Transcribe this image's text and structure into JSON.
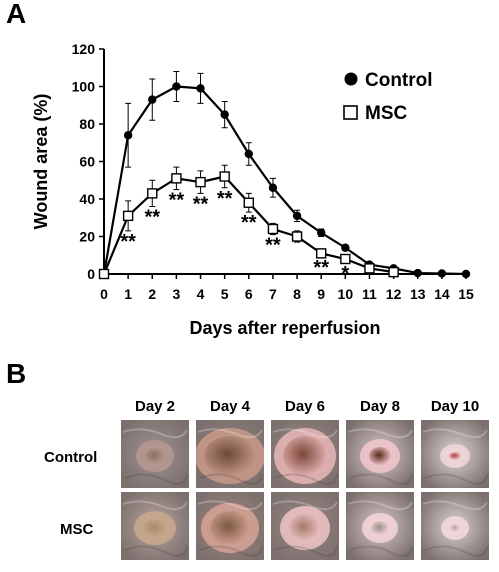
{
  "panel_a_label": "A",
  "panel_b_label": "B",
  "chart_data": {
    "type": "line",
    "title": "",
    "xlabel": "Days after reperfusion",
    "ylabel": "Wound area (%)",
    "xlim": [
      0,
      15
    ],
    "ylim": [
      0,
      120
    ],
    "x_ticks": [
      0,
      1,
      2,
      3,
      4,
      5,
      6,
      7,
      8,
      9,
      10,
      11,
      12,
      13,
      14,
      15
    ],
    "y_ticks": [
      0,
      20,
      40,
      60,
      80,
      100,
      120
    ],
    "grid": false,
    "legend_position": "top-right",
    "series": [
      {
        "name": "Control",
        "marker": "filled-circle",
        "color": "#000000",
        "x": [
          0,
          1,
          2,
          3,
          4,
          5,
          6,
          7,
          8,
          9,
          10,
          11,
          12,
          13,
          14,
          15
        ],
        "values": [
          0,
          74,
          93,
          100,
          99,
          85,
          64,
          46,
          31,
          22,
          14,
          5,
          3,
          0.5,
          0.3,
          0
        ],
        "errors": [
          0,
          17,
          11,
          8,
          8,
          7,
          6,
          5,
          3,
          2,
          1.5,
          1,
          0.5,
          0,
          0,
          0
        ]
      },
      {
        "name": "MSC",
        "marker": "open-square",
        "color": "#000000",
        "x": [
          0,
          1,
          2,
          3,
          4,
          5,
          6,
          7,
          8,
          9,
          10,
          11,
          12
        ],
        "values": [
          0,
          31,
          43,
          51,
          49,
          52,
          38,
          24,
          20,
          11,
          8,
          3,
          1
        ],
        "errors": [
          0,
          8,
          7,
          6,
          6,
          6,
          5,
          3,
          3,
          2,
          2,
          1,
          0.5
        ]
      }
    ],
    "annotations": [
      {
        "x": 1,
        "text": "**"
      },
      {
        "x": 2,
        "text": "**"
      },
      {
        "x": 3,
        "text": "**"
      },
      {
        "x": 4,
        "text": "**"
      },
      {
        "x": 5,
        "text": "**"
      },
      {
        "x": 6,
        "text": "**"
      },
      {
        "x": 7,
        "text": "**"
      },
      {
        "x": 9,
        "text": "**"
      },
      {
        "x": 10,
        "text": "*"
      }
    ]
  },
  "panel_b": {
    "days": [
      "Day 2",
      "Day 4",
      "Day 6",
      "Day 8",
      "Day 10"
    ],
    "rows": [
      "Control",
      "MSC"
    ]
  }
}
